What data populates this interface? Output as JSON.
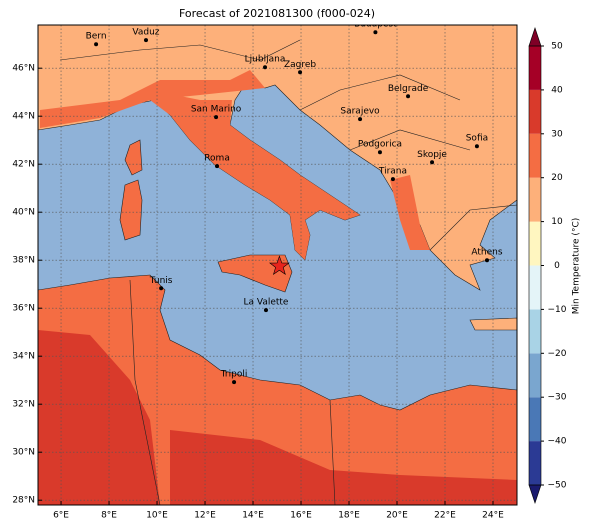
{
  "chart_data": {
    "type": "map",
    "title": "Forecast of 2021081300 (f000-024)",
    "xlim": [
      5.04,
      25
    ],
    "ylim": [
      27.8,
      47.8
    ],
    "xticks": [
      {
        "value": 6,
        "label": "6°E"
      },
      {
        "value": 8,
        "label": "8°E"
      },
      {
        "value": 10,
        "label": "10°E"
      },
      {
        "value": 12,
        "label": "12°E"
      },
      {
        "value": 14,
        "label": "14°E"
      },
      {
        "value": 16,
        "label": "16°E"
      },
      {
        "value": 18,
        "label": "18°E"
      },
      {
        "value": 20,
        "label": "20°E"
      },
      {
        "value": 22,
        "label": "22°E"
      },
      {
        "value": 24,
        "label": "24°E"
      }
    ],
    "yticks": [
      {
        "value": 28,
        "label": "28°N"
      },
      {
        "value": 30,
        "label": "30°N"
      },
      {
        "value": 32,
        "label": "32°N"
      },
      {
        "value": 34,
        "label": "34°N"
      },
      {
        "value": 36,
        "label": "36°N"
      },
      {
        "value": 38,
        "label": "38°N"
      },
      {
        "value": 40,
        "label": "40°N"
      },
      {
        "value": 42,
        "label": "42°N"
      },
      {
        "value": 44,
        "label": "44°N"
      },
      {
        "value": 46,
        "label": "46°N"
      }
    ],
    "grid": true,
    "cities": [
      {
        "name": "Bern",
        "lon": 7.46,
        "lat": 47.0
      },
      {
        "name": "Vaduz",
        "lon": 9.54,
        "lat": 47.17
      },
      {
        "name": "Budapest",
        "lon": 19.1,
        "lat": 47.5
      },
      {
        "name": "Ljubljana",
        "lon": 14.5,
        "lat": 46.04
      },
      {
        "name": "Zagreb",
        "lon": 15.96,
        "lat": 45.83
      },
      {
        "name": "Belgrade",
        "lon": 20.46,
        "lat": 44.83
      },
      {
        "name": "San Marino",
        "lon": 12.46,
        "lat": 43.96
      },
      {
        "name": "Sarajevo",
        "lon": 18.46,
        "lat": 43.88
      },
      {
        "name": "Sofia",
        "lon": 23.33,
        "lat": 42.75
      },
      {
        "name": "Roma",
        "lon": 12.5,
        "lat": 41.92
      },
      {
        "name": "Podgorica",
        "lon": 19.29,
        "lat": 42.5
      },
      {
        "name": "Skopje",
        "lon": 21.46,
        "lat": 42.08
      },
      {
        "name": "Tirana",
        "lon": 19.83,
        "lat": 41.38
      },
      {
        "name": "Athens",
        "lon": 23.75,
        "lat": 38.0
      },
      {
        "name": "Tunis",
        "lon": 10.17,
        "lat": 36.83
      },
      {
        "name": "La Valette",
        "lon": 14.54,
        "lat": 35.92
      },
      {
        "name": "Tripoli",
        "lon": 13.21,
        "lat": 32.92
      }
    ],
    "marker": {
      "lon": 15.1,
      "lat": 37.75,
      "color": "#e8241c"
    },
    "colorbar": {
      "label": "Min Temperature (°C)",
      "ticks": [
        {
          "value": -50,
          "label": "−50"
        },
        {
          "value": -40,
          "label": "−40"
        },
        {
          "value": -30,
          "label": "−30"
        },
        {
          "value": -20,
          "label": "−20"
        },
        {
          "value": -10,
          "label": "−10"
        },
        0,
        10,
        20,
        30,
        40,
        50
      ],
      "colors": [
        "#2b3a94",
        "#4a78b6",
        "#7aa6cf",
        "#a9d3e6",
        "#e4f4f8",
        "#fff6c0",
        "#fdb07a",
        "#f46d43",
        "#d93a2b",
        "#a50026"
      ],
      "under_color": "#1a1a6e",
      "over_color": "#7f0026"
    }
  }
}
